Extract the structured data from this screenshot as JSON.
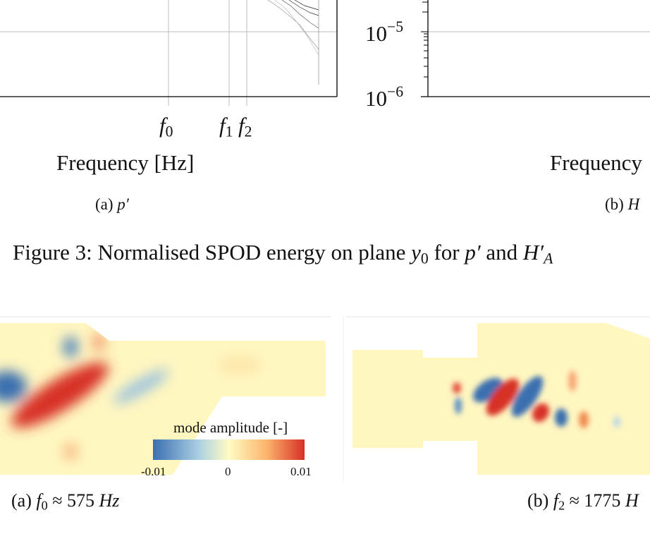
{
  "figure3": {
    "panel_a": {
      "xlabel": "Frequency [Hz]",
      "caption_prefix": "(a)",
      "caption_var": "p′",
      "ticks": [
        "f",
        "0",
        "f",
        "1",
        "f",
        "2"
      ]
    },
    "panel_b": {
      "xlabel": "Frequency",
      "caption_prefix": "(b)",
      "caption_var": "H",
      "yticks": [
        {
          "base": "10",
          "exp": "−5"
        },
        {
          "base": "10",
          "exp": "−6"
        }
      ],
      "yscale": "log"
    },
    "caption": {
      "text": "Figure 3: Normalised SPOD energy on plane ",
      "y": "y",
      "y_sub": "0",
      "mid": " for ",
      "p": "p′",
      "and": " and ",
      "h": "H′",
      "h_sub": "A"
    }
  },
  "figure4": {
    "colorbar": {
      "title": "mode amplitude [-]",
      "min": "-0.01",
      "mid": "0",
      "max": "0.01",
      "colors": [
        "#3b6fb0",
        "#ffffc0",
        "#d73027"
      ]
    },
    "panel_a": {
      "prefix": "(a) ",
      "f": "f",
      "sub": "0",
      "rest": " ≈ 575 ",
      "unit": "Hz"
    },
    "panel_b": {
      "prefix": "(b) ",
      "f": "f",
      "sub": "2",
      "rest": " ≈ 1775 ",
      "unit": "H"
    }
  }
}
